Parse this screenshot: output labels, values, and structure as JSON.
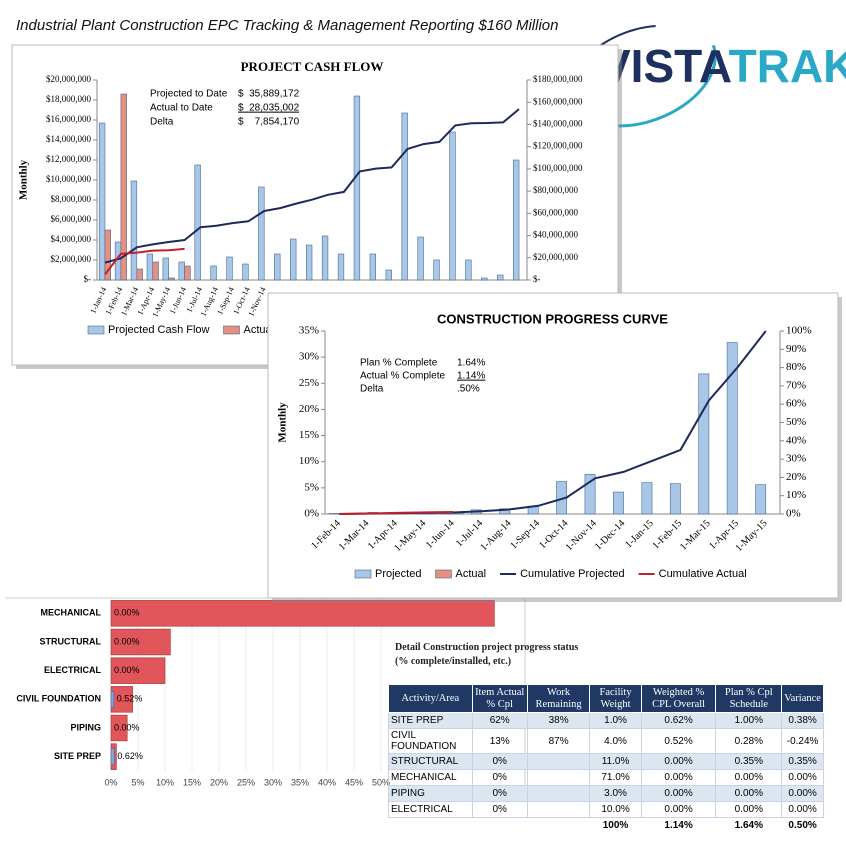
{
  "header": {
    "title": "Industrial Plant Construction EPC Tracking & Management Reporting $160 Million",
    "logo": [
      "VISTA",
      "TRAK"
    ]
  },
  "chart_data": [
    {
      "type": "combo",
      "title": "PROJECT CASH FLOW",
      "y_label": "Monthly",
      "categories": [
        "1-Jan-14",
        "1-Feb-14",
        "1-Mar-14",
        "1-Apr-14",
        "1-May-14",
        "1-Jun-14",
        "1-Jul-14",
        "1-Aug-14",
        "1-Sep-14",
        "1-Oct-14",
        "1-Nov-14",
        null,
        null,
        null,
        null,
        null,
        null,
        null,
        null,
        null,
        null,
        null,
        null,
        null,
        null,
        null,
        null
      ],
      "series": [
        {
          "name": "Projected Cash Flow",
          "type": "bar",
          "color": "#a8c6e6",
          "values": [
            15700000,
            3800000,
            9900000,
            2600000,
            2200000,
            1800000,
            11500000,
            1400000,
            2300000,
            1600000,
            9300000,
            2600000,
            4100000,
            3500000,
            4400000,
            2600000,
            18400000,
            2600000,
            1000000,
            16700000,
            4300000,
            2000000,
            14800000,
            2000000,
            200000,
            500000,
            12000000
          ]
        },
        {
          "name": "Actuals",
          "type": "bar",
          "color": "#e6907f",
          "values": [
            5000000,
            18600000,
            1100000,
            1800000,
            200000,
            1400000,
            null,
            null,
            null,
            null,
            null,
            null,
            null,
            null,
            null,
            null,
            null,
            null,
            null,
            null,
            null,
            null,
            null,
            null,
            null,
            null,
            null
          ]
        },
        {
          "type": "line",
          "axis": "y2",
          "color": "#1f2a5c",
          "values": [
            15700000,
            19500000,
            29400000,
            32000000,
            34200000,
            36000000,
            47500000,
            48900000,
            51200000,
            52800000,
            62100000,
            64700000,
            68800000,
            72300000,
            76700000,
            79300000,
            97700000,
            100300000,
            101300000,
            118000000,
            122300000,
            124300000,
            139100000,
            141100000,
            141300000,
            141800000,
            153800000
          ]
        },
        {
          "type": "line",
          "axis": "y2",
          "color": "#c0202a",
          "values": [
            5000000,
            23600000,
            24700000,
            26500000,
            26700000,
            28000000,
            null,
            null,
            null,
            null,
            null,
            null,
            null,
            null,
            null,
            null,
            null,
            null,
            null,
            null,
            null,
            null,
            null,
            null,
            null,
            null,
            null
          ]
        }
      ],
      "ylim": [
        0,
        20000000
      ],
      "yticks": [
        {
          "value": 0,
          "label": "$-"
        },
        {
          "value": 2000000,
          "label": "$2,000,000"
        },
        {
          "value": 4000000,
          "label": "$4,000,000"
        },
        {
          "value": 6000000,
          "label": "$6,000,000"
        },
        {
          "value": 8000000,
          "label": "$8,000,000"
        },
        {
          "value": 10000000,
          "label": "$10,000,000"
        },
        {
          "value": 12000000,
          "label": "$12,000,000"
        },
        {
          "value": 14000000,
          "label": "$14,000,000"
        },
        {
          "value": 16000000,
          "label": "$16,000,000"
        },
        {
          "value": 18000000,
          "label": "$18,000,000"
        },
        {
          "value": 20000000,
          "label": "$20,000,000"
        }
      ],
      "y2lim": [
        0,
        180000000
      ],
      "y2ticks": [
        {
          "value": 0,
          "label": "$-"
        },
        {
          "value": 20000000,
          "label": "$20,000,000"
        },
        {
          "value": 40000000,
          "label": "$40,000,000"
        },
        {
          "value": 60000000,
          "label": "$60,000,000"
        },
        {
          "value": 80000000,
          "label": "$80,000,000"
        },
        {
          "value": 100000000,
          "label": "$100,000,000"
        },
        {
          "value": 120000000,
          "label": "$120,000,000"
        },
        {
          "value": 140000000,
          "label": "$140,000,000"
        },
        {
          "value": 160000000,
          "label": "$160,000,000"
        },
        {
          "value": 180000000,
          "label": "$180,000,000"
        }
      ],
      "annotations": [
        {
          "label": "Projected to Date",
          "value": "$  35,889,172"
        },
        {
          "label": "Actual to Date",
          "value": "$  28,035,002",
          "underline": true
        },
        {
          "label": "Delta",
          "value": "$    7,854,170"
        }
      ]
    },
    {
      "type": "combo",
      "title": "CONSTRUCTION PROGRESS CURVE",
      "y_label": "Monthly",
      "categories": [
        "1-Feb-14",
        "1-Mar-14",
        "1-Apr-14",
        "1-May-14",
        "1-Jun-14",
        "1-Jul-14",
        "1-Aug-14",
        "1-Sep-14",
        "1-Oct-14",
        "1-Nov-14",
        "1-Dec-14",
        "1-Jan-15",
        "1-Feb-15",
        "1-Mar-15",
        "1-Apr-15",
        "1-May-15"
      ],
      "series": [
        {
          "name": "Projected",
          "type": "bar",
          "color": "#a8c6e6",
          "values": [
            0.1,
            0.2,
            0.2,
            0.2,
            0.3,
            0.8,
            1.0,
            1.5,
            6.2,
            7.6,
            4.2,
            6.0,
            5.8,
            26.8,
            32.8,
            5.6
          ]
        },
        {
          "name": "Actual",
          "type": "bar",
          "color": "#e6907f",
          "values": [
            0.1,
            0.3,
            0.3,
            0.3,
            0.2,
            null,
            null,
            null,
            null,
            null,
            null,
            null,
            null,
            null,
            null,
            null
          ]
        },
        {
          "name": "Cumulative Projected",
          "type": "line",
          "axis": "y2",
          "color": "#1f2a5c",
          "values": [
            0,
            0.2,
            0.4,
            0.6,
            0.8,
            1.5,
            2.5,
            4.5,
            9,
            19.5,
            23,
            29,
            35,
            62,
            80,
            100
          ]
        },
        {
          "name": "Cumulative Actual",
          "type": "line",
          "axis": "y2",
          "color": "#c0202a",
          "values": [
            0,
            0.3,
            0.6,
            0.9,
            1.1,
            null,
            null,
            null,
            null,
            null,
            null,
            null,
            null,
            null,
            null,
            null
          ]
        }
      ],
      "ylim": [
        0,
        35
      ],
      "yticks": [
        {
          "value": 0,
          "label": "0%"
        },
        {
          "value": 5,
          "label": "5%"
        },
        {
          "value": 10,
          "label": "10%"
        },
        {
          "value": 15,
          "label": "15%"
        },
        {
          "value": 20,
          "label": "20%"
        },
        {
          "value": 25,
          "label": "25%"
        },
        {
          "value": 30,
          "label": "30%"
        },
        {
          "value": 35,
          "label": "35%"
        }
      ],
      "y2lim": [
        0,
        100
      ],
      "y2ticks": [
        {
          "value": 0,
          "label": "0%"
        },
        {
          "value": 10,
          "label": "10%"
        },
        {
          "value": 20,
          "label": "20%"
        },
        {
          "value": 30,
          "label": "30%"
        },
        {
          "value": 40,
          "label": "40%"
        },
        {
          "value": 50,
          "label": "50%"
        },
        {
          "value": 60,
          "label": "60%"
        },
        {
          "value": 70,
          "label": "70%"
        },
        {
          "value": 80,
          "label": "80%"
        },
        {
          "value": 90,
          "label": "90%"
        },
        {
          "value": 100,
          "label": "100%"
        }
      ],
      "annotations": [
        {
          "label": "Plan % Complete",
          "value": "1.64%"
        },
        {
          "label": "Actual % Complete",
          "value": "1.14%",
          "underline": true
        },
        {
          "label": "Delta",
          "value": ".50%"
        }
      ]
    },
    {
      "type": "hbar",
      "categories": [
        "MECHANICAL",
        "STRUCTURAL",
        "ELECTRICAL",
        "CIVIL FOUNDATION",
        "PIPING",
        "SITE PREP"
      ],
      "series": [
        {
          "color": "#e0565a",
          "values": [
            71,
            11,
            10,
            4,
            3,
            1
          ]
        },
        {
          "color": "#7ea6d8",
          "values": [
            0,
            0,
            0,
            0.52,
            0,
            0.62
          ],
          "value_labels": [
            "0.00%",
            "0.00%",
            "0.00%",
            "0.52%",
            "0.00%",
            "0.62%"
          ]
        }
      ],
      "xlim": [
        0,
        75
      ],
      "xticks": [
        {
          "value": 0,
          "label": "0%"
        },
        {
          "value": 5,
          "label": "5%"
        },
        {
          "value": 10,
          "label": "10%"
        },
        {
          "value": 15,
          "label": "15%"
        },
        {
          "value": 20,
          "label": "20%"
        },
        {
          "value": 25,
          "label": "25%"
        },
        {
          "value": 30,
          "label": "30%"
        },
        {
          "value": 35,
          "label": "35%"
        },
        {
          "value": 40,
          "label": "40%"
        },
        {
          "value": 45,
          "label": "45%"
        },
        {
          "value": 50,
          "label": "50%"
        }
      ]
    }
  ],
  "table": {
    "title": "Detail Construction project progress status",
    "subtitle": "(% complete/installed, etc.)",
    "header": [
      "Activity/Area",
      "Item Actual % Cpl",
      "Work Remaining",
      "Facility Weight",
      "Weighted % CPL Overall",
      "Plan % Cpl Schedule",
      "Variance"
    ],
    "rows": [
      [
        "SITE PREP",
        "62%",
        "38%",
        "1.0%",
        "0.62%",
        "1.00%",
        "0.38%"
      ],
      [
        "CIVIL FOUNDATION",
        "13%",
        "87%",
        "4.0%",
        "0.52%",
        "0.28%",
        "-0.24%"
      ],
      [
        "STRUCTURAL",
        "0%",
        null,
        "11.0%",
        "0.00%",
        "0.35%",
        "0.35%"
      ],
      [
        "MECHANICAL",
        "0%",
        null,
        "71.0%",
        "0.00%",
        "0.00%",
        "0.00%"
      ],
      [
        "PIPING",
        "0%",
        null,
        "3.0%",
        "0.00%",
        "0.00%",
        "0.00%"
      ],
      [
        "ELECTRICAL",
        "0%",
        null,
        "10.0%",
        "0.00%",
        "0.00%",
        "0.00%"
      ]
    ],
    "totals": [
      null,
      null,
      null,
      "100%",
      "1.14%",
      "1.64%",
      "0.50%"
    ]
  }
}
